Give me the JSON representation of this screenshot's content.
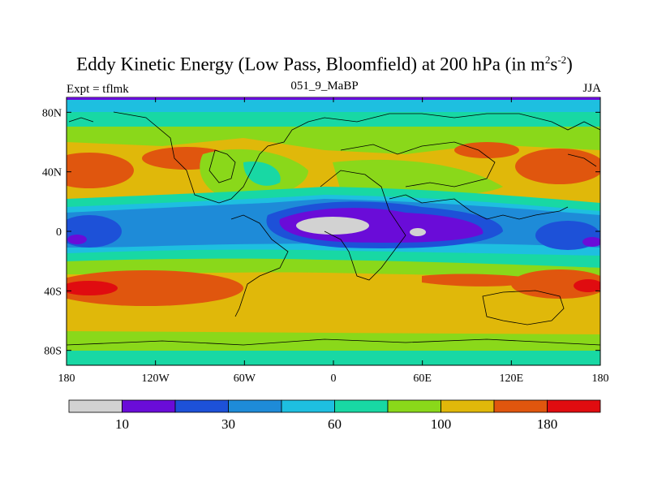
{
  "title": {
    "main": "Eddy Kinetic Energy (Low Pass, Bloomfield) at 200 hPa (in m",
    "sup1": "2",
    "mid": "s",
    "sup2": "-2",
    "close": ")"
  },
  "subtitle_left": "Expt = tflmk",
  "subtitle_center": "051_9_MaBP",
  "subtitle_right": "JJA",
  "map_data": {
    "type": "filled-contour-map",
    "projection": "cylindrical-equidistant",
    "lon_range": [
      -180,
      180
    ],
    "lat_range": [
      -90,
      90
    ],
    "x_tick_labels": [
      "180",
      "120W",
      "60W",
      "0",
      "60E",
      "120E",
      "180"
    ],
    "x_tick_values": [
      -180,
      -120,
      -60,
      0,
      60,
      120,
      180
    ],
    "y_tick_labels": [
      "80N",
      "40N",
      "0",
      "40S",
      "80S"
    ],
    "y_tick_values": [
      80,
      40,
      0,
      -40,
      -80
    ],
    "colorbar": {
      "colors": [
        "#d2d2d2",
        "#6a0cd8",
        "#1d51d8",
        "#1e8bd8",
        "#1ebfe0",
        "#18d8a4",
        "#8ad81a",
        "#e0b80a",
        "#e0560e",
        "#e00c10"
      ],
      "labels": [
        "10",
        "30",
        "60",
        "100",
        "180"
      ]
    }
  }
}
